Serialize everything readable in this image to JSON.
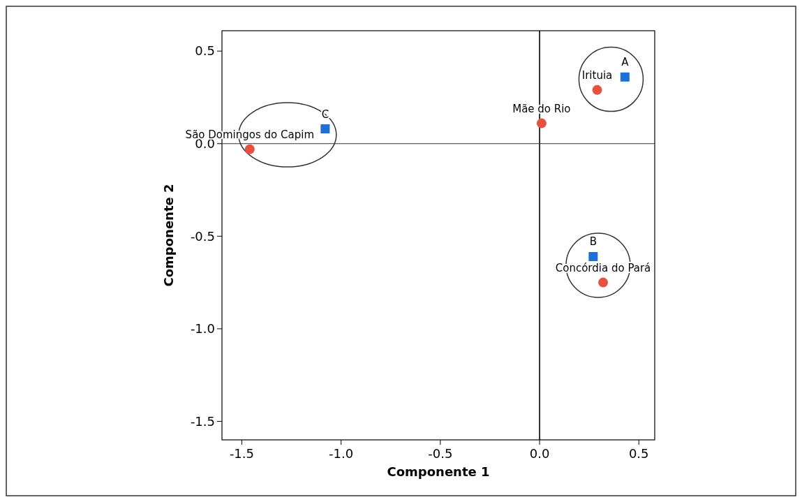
{
  "chart_data": {
    "type": "scatter",
    "xlabel": "Componente 1",
    "ylabel": "Componente 2",
    "xlim": [
      -1.6,
      0.58
    ],
    "ylim": [
      -1.6,
      0.61
    ],
    "xticks": [
      {
        "value": -1.5,
        "label": "-1.5"
      },
      {
        "value": -1.0,
        "label": "-1.0"
      },
      {
        "value": -0.5,
        "label": "-0.5"
      },
      {
        "value": 0,
        "label": "0.0"
      },
      {
        "value": 0.5,
        "label": "0.5"
      }
    ],
    "yticks": [
      {
        "value": 0.5,
        "label": "0.5"
      },
      {
        "value": 0,
        "label": "0.0"
      },
      {
        "value": -0.5,
        "label": "-0.5"
      },
      {
        "value": -1.0,
        "label": "-1.0"
      },
      {
        "value": -1.5,
        "label": "-1.5"
      }
    ],
    "grid": false,
    "series": [
      {
        "color": "#e8503f",
        "marker": "circle",
        "x": [
          -1.46,
          0.01,
          0.29,
          0.32
        ],
        "values": [
          -0.03,
          0.11,
          0.29,
          -0.75
        ]
      },
      {
        "color": "#1f6fd6",
        "marker": "square",
        "x": [
          -1.08,
          0.43,
          0.27
        ],
        "values": [
          0.08,
          0.36,
          -0.61
        ]
      }
    ],
    "ref_lines": [
      {
        "axis": "x",
        "value": 0,
        "color": "#111111"
      },
      {
        "axis": "y",
        "value": 0,
        "color": "#333333"
      }
    ],
    "annotations": [
      {
        "text": "São Domingos do Capim",
        "x": -1.46,
        "y": -0.03
      },
      {
        "text": "Mãe do Rio",
        "x": 0.01,
        "y": 0.11
      },
      {
        "text": "Irituia",
        "x": 0.29,
        "y": 0.29
      },
      {
        "text": "Concórdia do Pará",
        "x": 0.32,
        "y": -0.75
      },
      {
        "text": "C",
        "x": -1.08,
        "y": 0.08
      },
      {
        "text": "A",
        "x": 0.43,
        "y": 0.36
      },
      {
        "text": "B",
        "x": 0.27,
        "y": -0.61
      }
    ]
  }
}
